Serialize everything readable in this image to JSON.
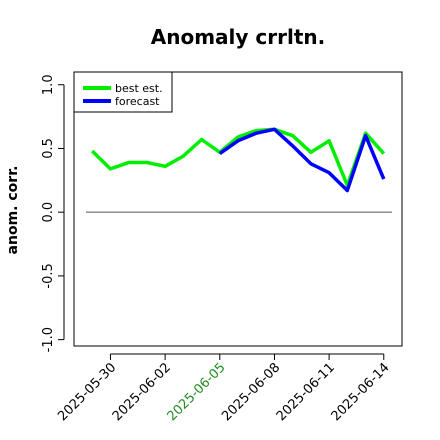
{
  "chart_data": {
    "type": "line",
    "title": "Anomaly crrltn.",
    "ylabel": "anom. corr.",
    "xlabel": "",
    "ylim": [
      -1.05,
      1.1
    ],
    "yticks": [
      -1.0,
      -0.5,
      0.0,
      0.5,
      1.0
    ],
    "ytick_labels": [
      "-1.0",
      "-0.5",
      "0.0",
      "0.5",
      "1.0"
    ],
    "x_start": "2025-05-28",
    "x_end": "2025-06-15",
    "x": [
      "2025-05-29",
      "2025-05-30",
      "2025-05-31",
      "2025-06-01",
      "2025-06-02",
      "2025-06-03",
      "2025-06-04",
      "2025-06-05",
      "2025-06-06",
      "2025-06-07",
      "2025-06-08",
      "2025-06-09",
      "2025-06-10",
      "2025-06-11",
      "2025-06-12",
      "2025-06-13",
      "2025-06-14"
    ],
    "xticks": [
      "2025-05-30",
      "2025-06-02",
      "2025-06-05",
      "2025-06-08",
      "2025-06-11",
      "2025-06-14"
    ],
    "xtick_colors": [
      "#000000",
      "#000000",
      "#228B22",
      "#000000",
      "#000000",
      "#000000"
    ],
    "reference_line": 0.0,
    "series": [
      {
        "name": "best est.",
        "color": "#00ee00",
        "x": [
          "2025-05-29",
          "2025-05-30",
          "2025-05-31",
          "2025-06-01",
          "2025-06-02",
          "2025-06-03",
          "2025-06-04",
          "2025-06-05",
          "2025-06-06",
          "2025-06-07",
          "2025-06-08",
          "2025-06-09",
          "2025-06-10",
          "2025-06-11",
          "2025-06-12",
          "2025-06-13",
          "2025-06-14"
        ],
        "values": [
          0.48,
          0.34,
          0.39,
          0.39,
          0.36,
          0.44,
          0.57,
          0.47,
          0.59,
          0.64,
          0.65,
          0.6,
          0.47,
          0.56,
          0.21,
          0.62,
          0.46
        ]
      },
      {
        "name": "forecast",
        "color": "#0000ff",
        "x": [
          "2025-06-05",
          "2025-06-06",
          "2025-06-07",
          "2025-06-08",
          "2025-06-09",
          "2025-06-10",
          "2025-06-11",
          "2025-06-12",
          "2025-06-13",
          "2025-06-14"
        ],
        "values": [
          0.46,
          0.56,
          0.62,
          0.65,
          0.52,
          0.38,
          0.31,
          0.17,
          0.6,
          0.26
        ]
      }
    ],
    "legend": "top-left",
    "grid": false
  }
}
